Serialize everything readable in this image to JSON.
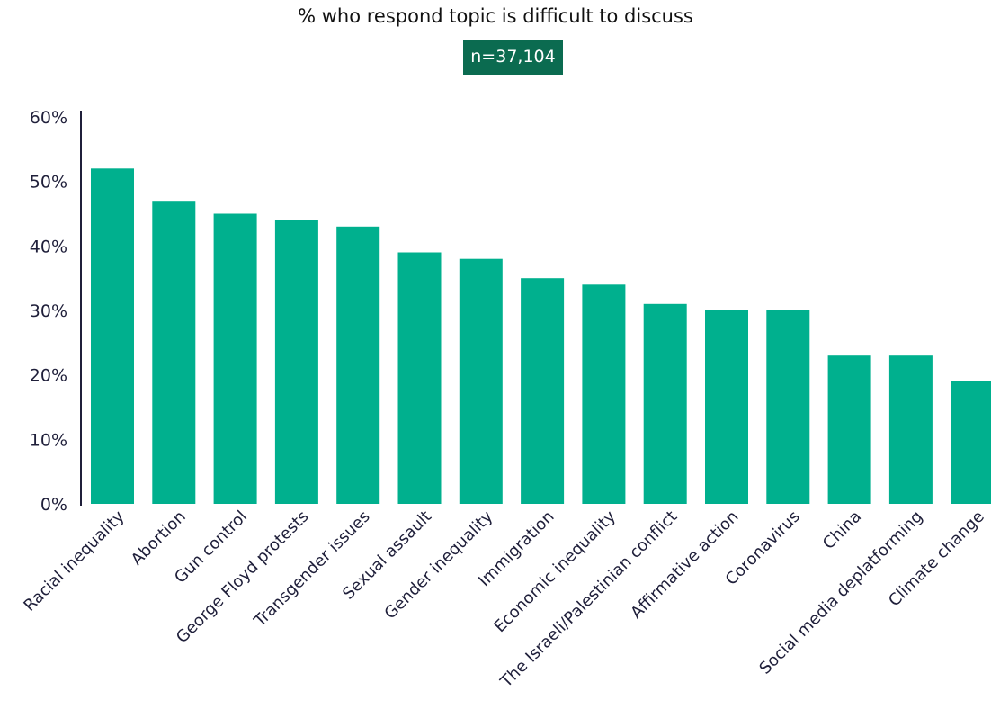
{
  "chart_data": {
    "type": "bar",
    "title": "% who respond topic is difficult to discuss",
    "subtitle": "n=37,104",
    "xlabel": "",
    "ylabel": "",
    "ylim": [
      0,
      60
    ],
    "yticks": [
      "0%",
      "10%",
      "20%",
      "30%",
      "40%",
      "50%",
      "60%"
    ],
    "grid": false,
    "categories": [
      "Racial inequality",
      "Abortion",
      "Gun control",
      "George Floyd protests",
      "Transgender issues",
      "Sexual assault",
      "Gender inequality",
      "Immigration",
      "Economic inequality",
      "The Israeli/Palestinian conflict",
      "Affirmative action",
      "Coronavirus",
      "China",
      "Social media deplatforming",
      "Climate change"
    ],
    "values": [
      52,
      47,
      45,
      44,
      43,
      39,
      38,
      35,
      34,
      31,
      30,
      30,
      23,
      23,
      19
    ],
    "colors": {
      "bar": "#00b08e",
      "badge": "#0b6b50",
      "axis": "#1f1f3a"
    }
  }
}
